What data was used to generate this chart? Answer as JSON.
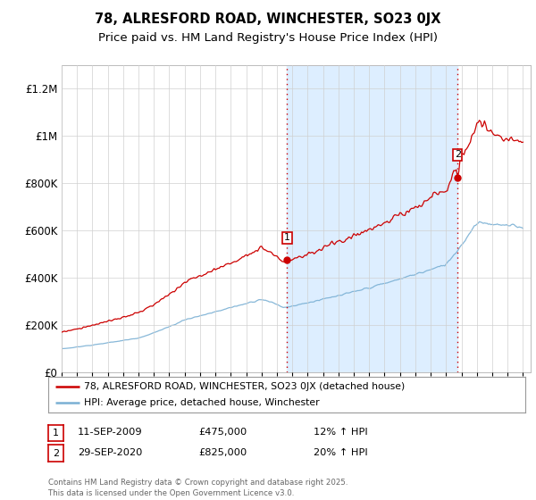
{
  "title": "78, ALRESFORD ROAD, WINCHESTER, SO23 0JX",
  "subtitle": "Price paid vs. HM Land Registry's House Price Index (HPI)",
  "ylim": [
    0,
    1300000
  ],
  "yticks": [
    0,
    200000,
    400000,
    600000,
    800000,
    1000000,
    1200000
  ],
  "sale1_year": 2009.667,
  "sale1_price": 475000,
  "sale1_date": "11-SEP-2009",
  "sale1_hpi_text": "12% ↑ HPI",
  "sale2_year": 2020.75,
  "sale2_price": 825000,
  "sale2_date": "29-SEP-2020",
  "sale2_hpi_text": "20% ↑ HPI",
  "line1_color": "#cc0000",
  "line2_color": "#7ab0d4",
  "shade_color": "#ddeeff",
  "vline_color": "#cc0000",
  "marker_color": "#cc0000",
  "legend_label1": "78, ALRESFORD ROAD, WINCHESTER, SO23 0JX (detached house)",
  "legend_label2": "HPI: Average price, detached house, Winchester",
  "footer": "Contains HM Land Registry data © Crown copyright and database right 2025.\nThis data is licensed under the Open Government Licence v3.0.",
  "background_color": "#ffffff",
  "grid_color": "#d0d0d0",
  "title_fontsize": 10.5,
  "subtitle_fontsize": 9.5,
  "tick_fontsize": 8.5
}
